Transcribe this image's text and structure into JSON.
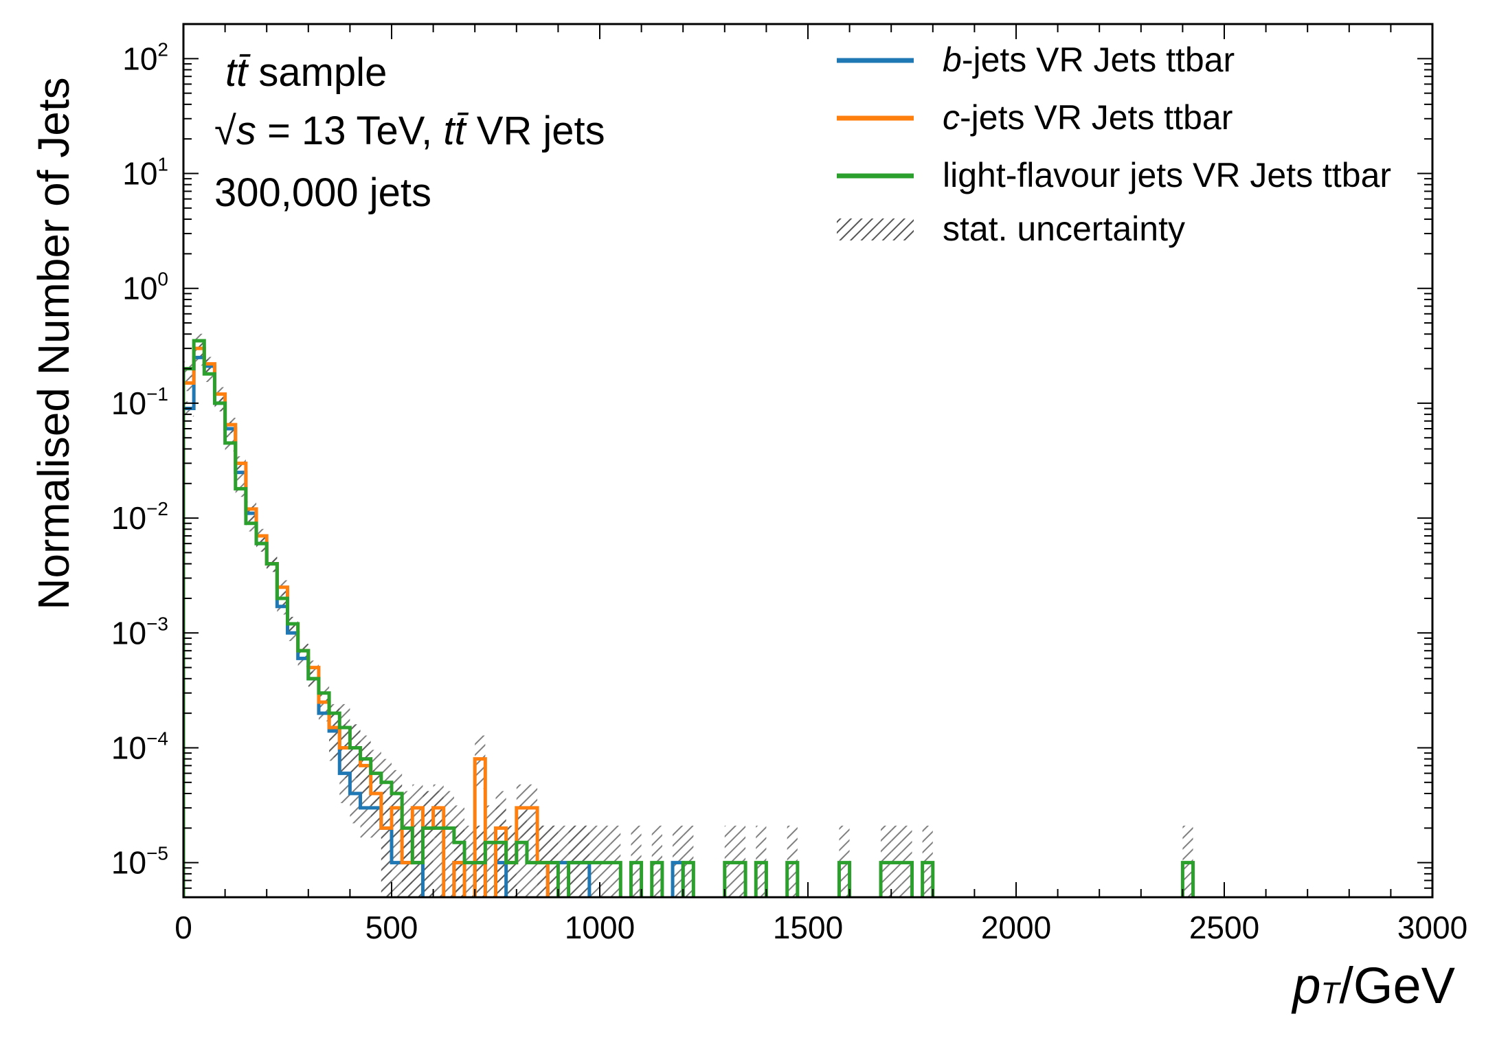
{
  "chart_data": {
    "type": "histogram",
    "xlabel": "p_T/GeV",
    "xlabel_main": "p",
    "xlabel_sub": "T",
    "xlabel_unit": "/GeV",
    "ylabel": "Normalised Number of Jets",
    "xlim": [
      0,
      3000
    ],
    "ylim": [
      5e-06,
      200
    ],
    "yscale": "log",
    "x_ticks": [
      "0",
      "500",
      "1000",
      "1500",
      "2000",
      "2500",
      "3000"
    ],
    "x_tick_values": [
      0,
      500,
      1000,
      1500,
      2000,
      2500,
      3000
    ],
    "y_tick_values": [
      1e-05,
      0.0001,
      0.001,
      0.01,
      0.1,
      1,
      10,
      100
    ],
    "y_tick_base": "10",
    "y_tick_exponents": [
      "−5",
      "−4",
      "−3",
      "−2",
      "−1",
      "0",
      "1",
      "2"
    ],
    "bin_width": 25,
    "annotations": {
      "line1_italic": "tt̄",
      "line1_rest": " sample",
      "line2_sqrt": "√s",
      "line2_mid": " = 13 TeV, ",
      "line2_italic": "tt̄",
      "line2_rest": " VR jets",
      "line3": "300,000 jets"
    },
    "legend_position": "top-right",
    "legend": {
      "b": {
        "italic": "b",
        "rest": "-jets VR Jets ttbar"
      },
      "c": {
        "italic": "c",
        "rest": "-jets VR Jets ttbar"
      },
      "light": {
        "italic": "",
        "rest": "light-flavour jets VR Jets ttbar"
      },
      "stat": {
        "italic": "",
        "rest": "stat. uncertainty"
      }
    },
    "series": [
      {
        "name": "b-jets VR Jets ttbar",
        "color": "#1f77b4",
        "bins": [
          [
            0,
            0.09
          ],
          [
            25,
            0.25
          ],
          [
            50,
            0.21
          ],
          [
            75,
            0.1
          ],
          [
            100,
            0.06
          ],
          [
            125,
            0.025
          ],
          [
            150,
            0.011
          ],
          [
            175,
            0.006
          ],
          [
            200,
            0.004
          ],
          [
            225,
            0.0017
          ],
          [
            250,
            0.001
          ],
          [
            275,
            0.0006
          ],
          [
            300,
            0.0004
          ],
          [
            325,
            0.0002
          ],
          [
            350,
            0.00014
          ],
          [
            375,
            6e-05
          ],
          [
            400,
            4e-05
          ],
          [
            425,
            3e-05
          ],
          [
            450,
            3e-05
          ],
          [
            475,
            2e-05
          ],
          [
            500,
            1e-05
          ],
          [
            525,
            1e-05
          ],
          [
            550,
            1e-05
          ],
          [
            650,
            1e-05
          ],
          [
            700,
            1e-05
          ],
          [
            750,
            1e-05
          ],
          [
            875,
            1e-05
          ],
          [
            900,
            1e-05
          ],
          [
            925,
            1e-05
          ],
          [
            950,
            1e-05
          ],
          [
            1175,
            1e-05
          ]
        ]
      },
      {
        "name": "c-jets VR Jets ttbar",
        "color": "#ff7f0e",
        "bins": [
          [
            0,
            0.15
          ],
          [
            25,
            0.3
          ],
          [
            50,
            0.22
          ],
          [
            75,
            0.12
          ],
          [
            100,
            0.065
          ],
          [
            125,
            0.03
          ],
          [
            150,
            0.012
          ],
          [
            175,
            0.007
          ],
          [
            200,
            0.004
          ],
          [
            225,
            0.0025
          ],
          [
            250,
            0.0012
          ],
          [
            275,
            0.0007
          ],
          [
            300,
            0.0005
          ],
          [
            325,
            0.00025
          ],
          [
            350,
            0.00015
          ],
          [
            375,
            0.0001
          ],
          [
            400,
            0.0001
          ],
          [
            425,
            7e-05
          ],
          [
            450,
            4e-05
          ],
          [
            475,
            2e-05
          ],
          [
            500,
            3e-05
          ],
          [
            525,
            1e-05
          ],
          [
            550,
            3e-05
          ],
          [
            575,
            2e-05
          ],
          [
            600,
            3e-05
          ],
          [
            650,
            1e-05
          ],
          [
            700,
            8e-05
          ],
          [
            750,
            2e-05
          ],
          [
            775,
            1e-05
          ],
          [
            800,
            3e-05
          ],
          [
            825,
            3e-05
          ],
          [
            850,
            1e-05
          ]
        ]
      },
      {
        "name": "light-flavour jets VR Jets ttbar",
        "color": "#2ca02c",
        "bins": [
          [
            0,
            0.2
          ],
          [
            25,
            0.35
          ],
          [
            50,
            0.18
          ],
          [
            75,
            0.1
          ],
          [
            100,
            0.045
          ],
          [
            125,
            0.018
          ],
          [
            150,
            0.009
          ],
          [
            175,
            0.006
          ],
          [
            200,
            0.004
          ],
          [
            225,
            0.002
          ],
          [
            250,
            0.0012
          ],
          [
            275,
            0.0007
          ],
          [
            300,
            0.0004
          ],
          [
            325,
            0.0003
          ],
          [
            350,
            0.0002
          ],
          [
            375,
            0.00015
          ],
          [
            400,
            0.0001
          ],
          [
            425,
            8e-05
          ],
          [
            450,
            6e-05
          ],
          [
            475,
            5e-05
          ],
          [
            500,
            4e-05
          ],
          [
            525,
            2e-05
          ],
          [
            550,
            1e-05
          ],
          [
            575,
            2e-05
          ],
          [
            600,
            2e-05
          ],
          [
            625,
            2e-05
          ],
          [
            650,
            1.5e-05
          ],
          [
            675,
            1e-05
          ],
          [
            700,
            1e-05
          ],
          [
            725,
            1.5e-05
          ],
          [
            750,
            1.5e-05
          ],
          [
            775,
            1e-05
          ],
          [
            800,
            1.5e-05
          ],
          [
            825,
            1e-05
          ],
          [
            850,
            1e-05
          ],
          [
            875,
            1e-05
          ],
          [
            925,
            1e-05
          ],
          [
            950,
            1e-05
          ],
          [
            975,
            1e-05
          ],
          [
            1000,
            1e-05
          ],
          [
            1025,
            1e-05
          ],
          [
            1075,
            1e-05
          ],
          [
            1125,
            1e-05
          ],
          [
            1200,
            1e-05
          ],
          [
            1300,
            1e-05
          ],
          [
            1325,
            1e-05
          ],
          [
            1375,
            1e-05
          ],
          [
            1450,
            1e-05
          ],
          [
            1575,
            1e-05
          ],
          [
            1675,
            1e-05
          ],
          [
            1700,
            1e-05
          ],
          [
            1725,
            1e-05
          ],
          [
            1775,
            1e-05
          ],
          [
            2400,
            1e-05
          ]
        ]
      }
    ]
  },
  "colors": {
    "b": "#1f77b4",
    "c": "#ff7f0e",
    "light": "#2ca02c",
    "stat": "#444444"
  }
}
